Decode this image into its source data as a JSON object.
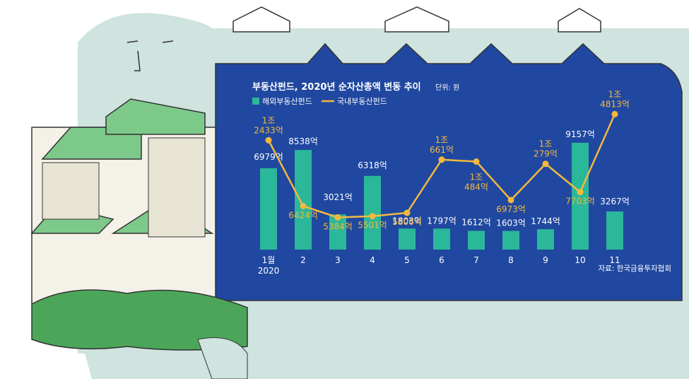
{
  "chart_data": {
    "type": "bar",
    "title": "부동산펀드, 2020년 순자산총액 변동 추이",
    "unit": "단위: 원",
    "source": "자료: 한국금융투자협회",
    "categories": [
      "1월\n2020",
      "2",
      "3",
      "4",
      "5",
      "6",
      "7",
      "8",
      "9",
      "10",
      "11"
    ],
    "series": [
      {
        "name": "해외부동산펀드",
        "type": "bar",
        "color": "#2bb79a",
        "values": [
          6979,
          8538,
          3021,
          6318,
          1803,
          1797,
          1612,
          1603,
          1744,
          9157,
          3267
        ],
        "labels": [
          "6979억",
          "8538억",
          "3021억",
          "6318억",
          "1803억",
          "1797억",
          "1612억",
          "1603억",
          "1744억",
          "9157억",
          "3267억"
        ]
      },
      {
        "name": "국내부동산펀드",
        "type": "line",
        "color": "#f3b93e",
        "values": [
          12433,
          6424,
          5384,
          5501,
          5806,
          10661,
          10484,
          6973,
          10279,
          7703,
          14813
        ],
        "labels": [
          "1조\n2433억",
          "6424억",
          "5384억",
          "5501억",
          "5806억",
          "1조\n661억",
          "1조\n484억",
          "6973억",
          "1조\n279억",
          "7703억",
          "1조\n4813억"
        ]
      }
    ],
    "legend_position": "top-left",
    "grid": false
  },
  "colors": {
    "panel": "#2048a0",
    "background_figure": "#cfe3df",
    "bar": "#2bb79a",
    "line": "#f3b93e"
  }
}
